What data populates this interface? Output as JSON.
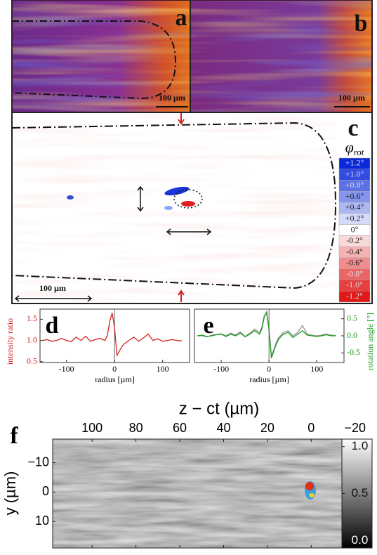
{
  "chart_data": [
    {
      "type": "image",
      "panel_label": "a",
      "scale_bar_label": "100 µm"
    },
    {
      "type": "image",
      "panel_label": "b",
      "scale_bar_label": "100 µm"
    },
    {
      "type": "image",
      "panel_label": "c",
      "scale_bar_label": "100 µm",
      "colorbar_title": "φ",
      "colorbar_title_subscript": "rot",
      "colorbar_colors": [
        "#e01818",
        "#ffffff",
        "#0a28d8"
      ],
      "colorbar_ticks": [
        {
          "value": 1.2,
          "label": "+1.2°"
        },
        {
          "value": 1.0,
          "label": "+1.0°"
        },
        {
          "value": 0.8,
          "label": "+0.8°"
        },
        {
          "value": 0.6,
          "label": "+0.6°"
        },
        {
          "value": 0.4,
          "label": "+0.4°"
        },
        {
          "value": 0.2,
          "label": "+0.2°"
        },
        {
          "value": 0,
          "label": "0°"
        },
        {
          "value": -0.2,
          "label": "-0.2°"
        },
        {
          "value": -0.4,
          "label": "-0.4°"
        },
        {
          "value": -0.6,
          "label": "-0.6°"
        },
        {
          "value": -0.8,
          "label": "-0.8°"
        },
        {
          "value": -1.0,
          "label": "-1.0°"
        },
        {
          "value": -1.2,
          "label": "-1.2°"
        }
      ]
    },
    {
      "type": "line",
      "panel_label": "d",
      "xlabel": "radius [µm]",
      "ylabel": "intensity ratio",
      "ylabel_color": "#d42020",
      "x": [
        -150,
        -140,
        -130,
        -120,
        -110,
        -100,
        -90,
        -80,
        -70,
        -60,
        -50,
        -40,
        -30,
        -20,
        -15,
        -10,
        -5,
        0,
        5,
        10,
        15,
        20,
        30,
        40,
        50,
        60,
        70,
        80,
        90,
        100,
        110,
        120,
        130,
        140
      ],
      "series": [
        {
          "color": "#d42020",
          "values": [
            1.0,
            1.02,
            0.98,
            1.0,
            1.05,
            1.0,
            0.97,
            1.08,
            1.0,
            1.1,
            0.98,
            1.02,
            1.05,
            1.0,
            1.12,
            1.45,
            1.65,
            1.3,
            0.65,
            0.75,
            0.85,
            0.92,
            1.0,
            1.08,
            0.98,
            1.06,
            1.15,
            1.0,
            1.04,
            0.98,
            1.0,
            1.02,
            1.0,
            0.99
          ]
        }
      ],
      "vline": 0,
      "xlim": [
        -155,
        156
      ],
      "ylim": [
        0.48,
        1.74
      ],
      "xticks": [
        -100,
        0,
        100
      ],
      "yticks": [
        0.5,
        {
          "value": 1,
          "label": "1.0"
        },
        1.5
      ],
      "yaxis_side": "left"
    },
    {
      "type": "line",
      "panel_label": "e",
      "xlabel": "radius [µm]",
      "ylabel": "rotation angle [°]",
      "ylabel_color": "#1a9a1a",
      "x": [
        -150,
        -140,
        -130,
        -120,
        -110,
        -100,
        -90,
        -80,
        -70,
        -60,
        -50,
        -40,
        -30,
        -20,
        -15,
        -10,
        -5,
        0,
        5,
        10,
        15,
        20,
        30,
        40,
        50,
        60,
        70,
        80,
        90,
        100,
        110,
        120,
        130,
        140
      ],
      "series": [
        {
          "color": "#999999",
          "values": [
            0.0,
            0.0,
            -0.03,
            0.02,
            0.04,
            0.06,
            0.0,
            0.08,
            0.02,
            0.12,
            -0.02,
            0.08,
            0.2,
            0.1,
            0.25,
            0.6,
            0.65,
            0.15,
            -0.6,
            -0.4,
            -0.2,
            -0.05,
            0.1,
            0.15,
            0.0,
            0.1,
            0.3,
            0.05,
            0.02,
            0.0,
            0.02,
            0.05,
            0.02,
            0.01
          ]
        },
        {
          "color": "#1a9a1a",
          "values": [
            0.0,
            0.02,
            -0.02,
            0.0,
            0.03,
            0.05,
            -0.02,
            0.05,
            0.0,
            0.08,
            -0.03,
            0.05,
            0.15,
            0.05,
            0.2,
            0.55,
            0.7,
            0.2,
            -0.65,
            -0.45,
            -0.25,
            -0.1,
            0.05,
            0.1,
            -0.05,
            0.05,
            0.15,
            0.02,
            0.0,
            -0.02,
            0.0,
            0.03,
            0.0,
            0.0
          ]
        }
      ],
      "vline": 0,
      "xlim": [
        -156,
        157
      ],
      "ylim": [
        -0.78,
        0.78
      ],
      "xticks": [
        -100,
        0,
        100
      ],
      "yticks": [
        -0.5,
        {
          "value": 0,
          "label": "0.0"
        },
        0.5
      ],
      "yaxis_side": "right"
    },
    {
      "type": "heatmap",
      "panel_label": "f",
      "title": "z − ct (µm)",
      "ylabel": "y (µm)",
      "xlim": [
        118,
        -14
      ],
      "ylim": [
        -18,
        19
      ],
      "xticks": [
        100,
        80,
        60,
        40,
        20,
        0,
        {
          "value": -20,
          "label": "−20"
        }
      ],
      "yticks": [
        {
          "value": -10,
          "label": "−10"
        },
        0,
        10
      ],
      "colorbar_lim": [
        -0.08,
        1.08
      ],
      "colorbar_ticks": [
        {
          "value": 1,
          "label": "1.0"
        },
        0.5,
        {
          "value": 0,
          "label": "0.0"
        }
      ]
    }
  ]
}
